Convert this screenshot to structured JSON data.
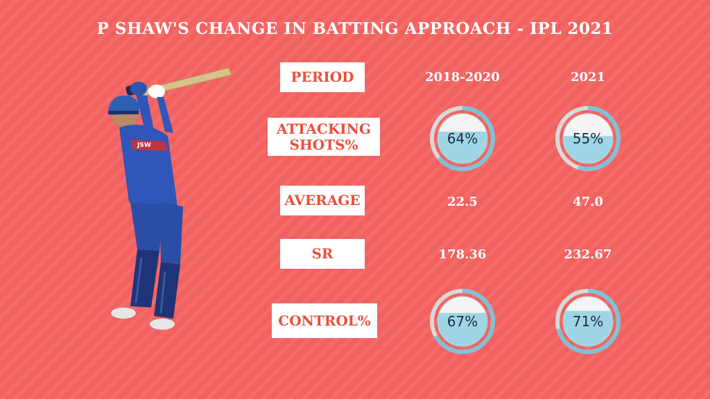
{
  "title": "P SHAW'S CHANGE IN  BATTING APPROACH - IPL 2021",
  "columns": [
    "2018-2020",
    "2021"
  ],
  "rows": [
    {
      "label": "PERIOD"
    },
    {
      "label_line1": "ATTACKING",
      "label_line2": "SHOTS%",
      "values": [
        "64%",
        "55%"
      ],
      "levels": [
        0.64,
        0.55
      ]
    },
    {
      "label": "AVERAGE",
      "values": [
        "22.5",
        "47.0"
      ]
    },
    {
      "label": "SR",
      "values": [
        "178.36",
        "232.67"
      ]
    },
    {
      "label": "CONTROL%",
      "values": [
        "67%",
        "71%"
      ],
      "levels": [
        0.67,
        0.71
      ]
    }
  ],
  "player_jersey_text": "JSW",
  "colors": {
    "background": "#f2615f",
    "label_text": "#e8503a",
    "gauge_fill": "#9fd6e6",
    "gauge_ring": "#d9d9d9",
    "gauge_arc": "#7cc3d8",
    "jersey": "#2f56b8",
    "helmet": "#2d5fb5"
  }
}
